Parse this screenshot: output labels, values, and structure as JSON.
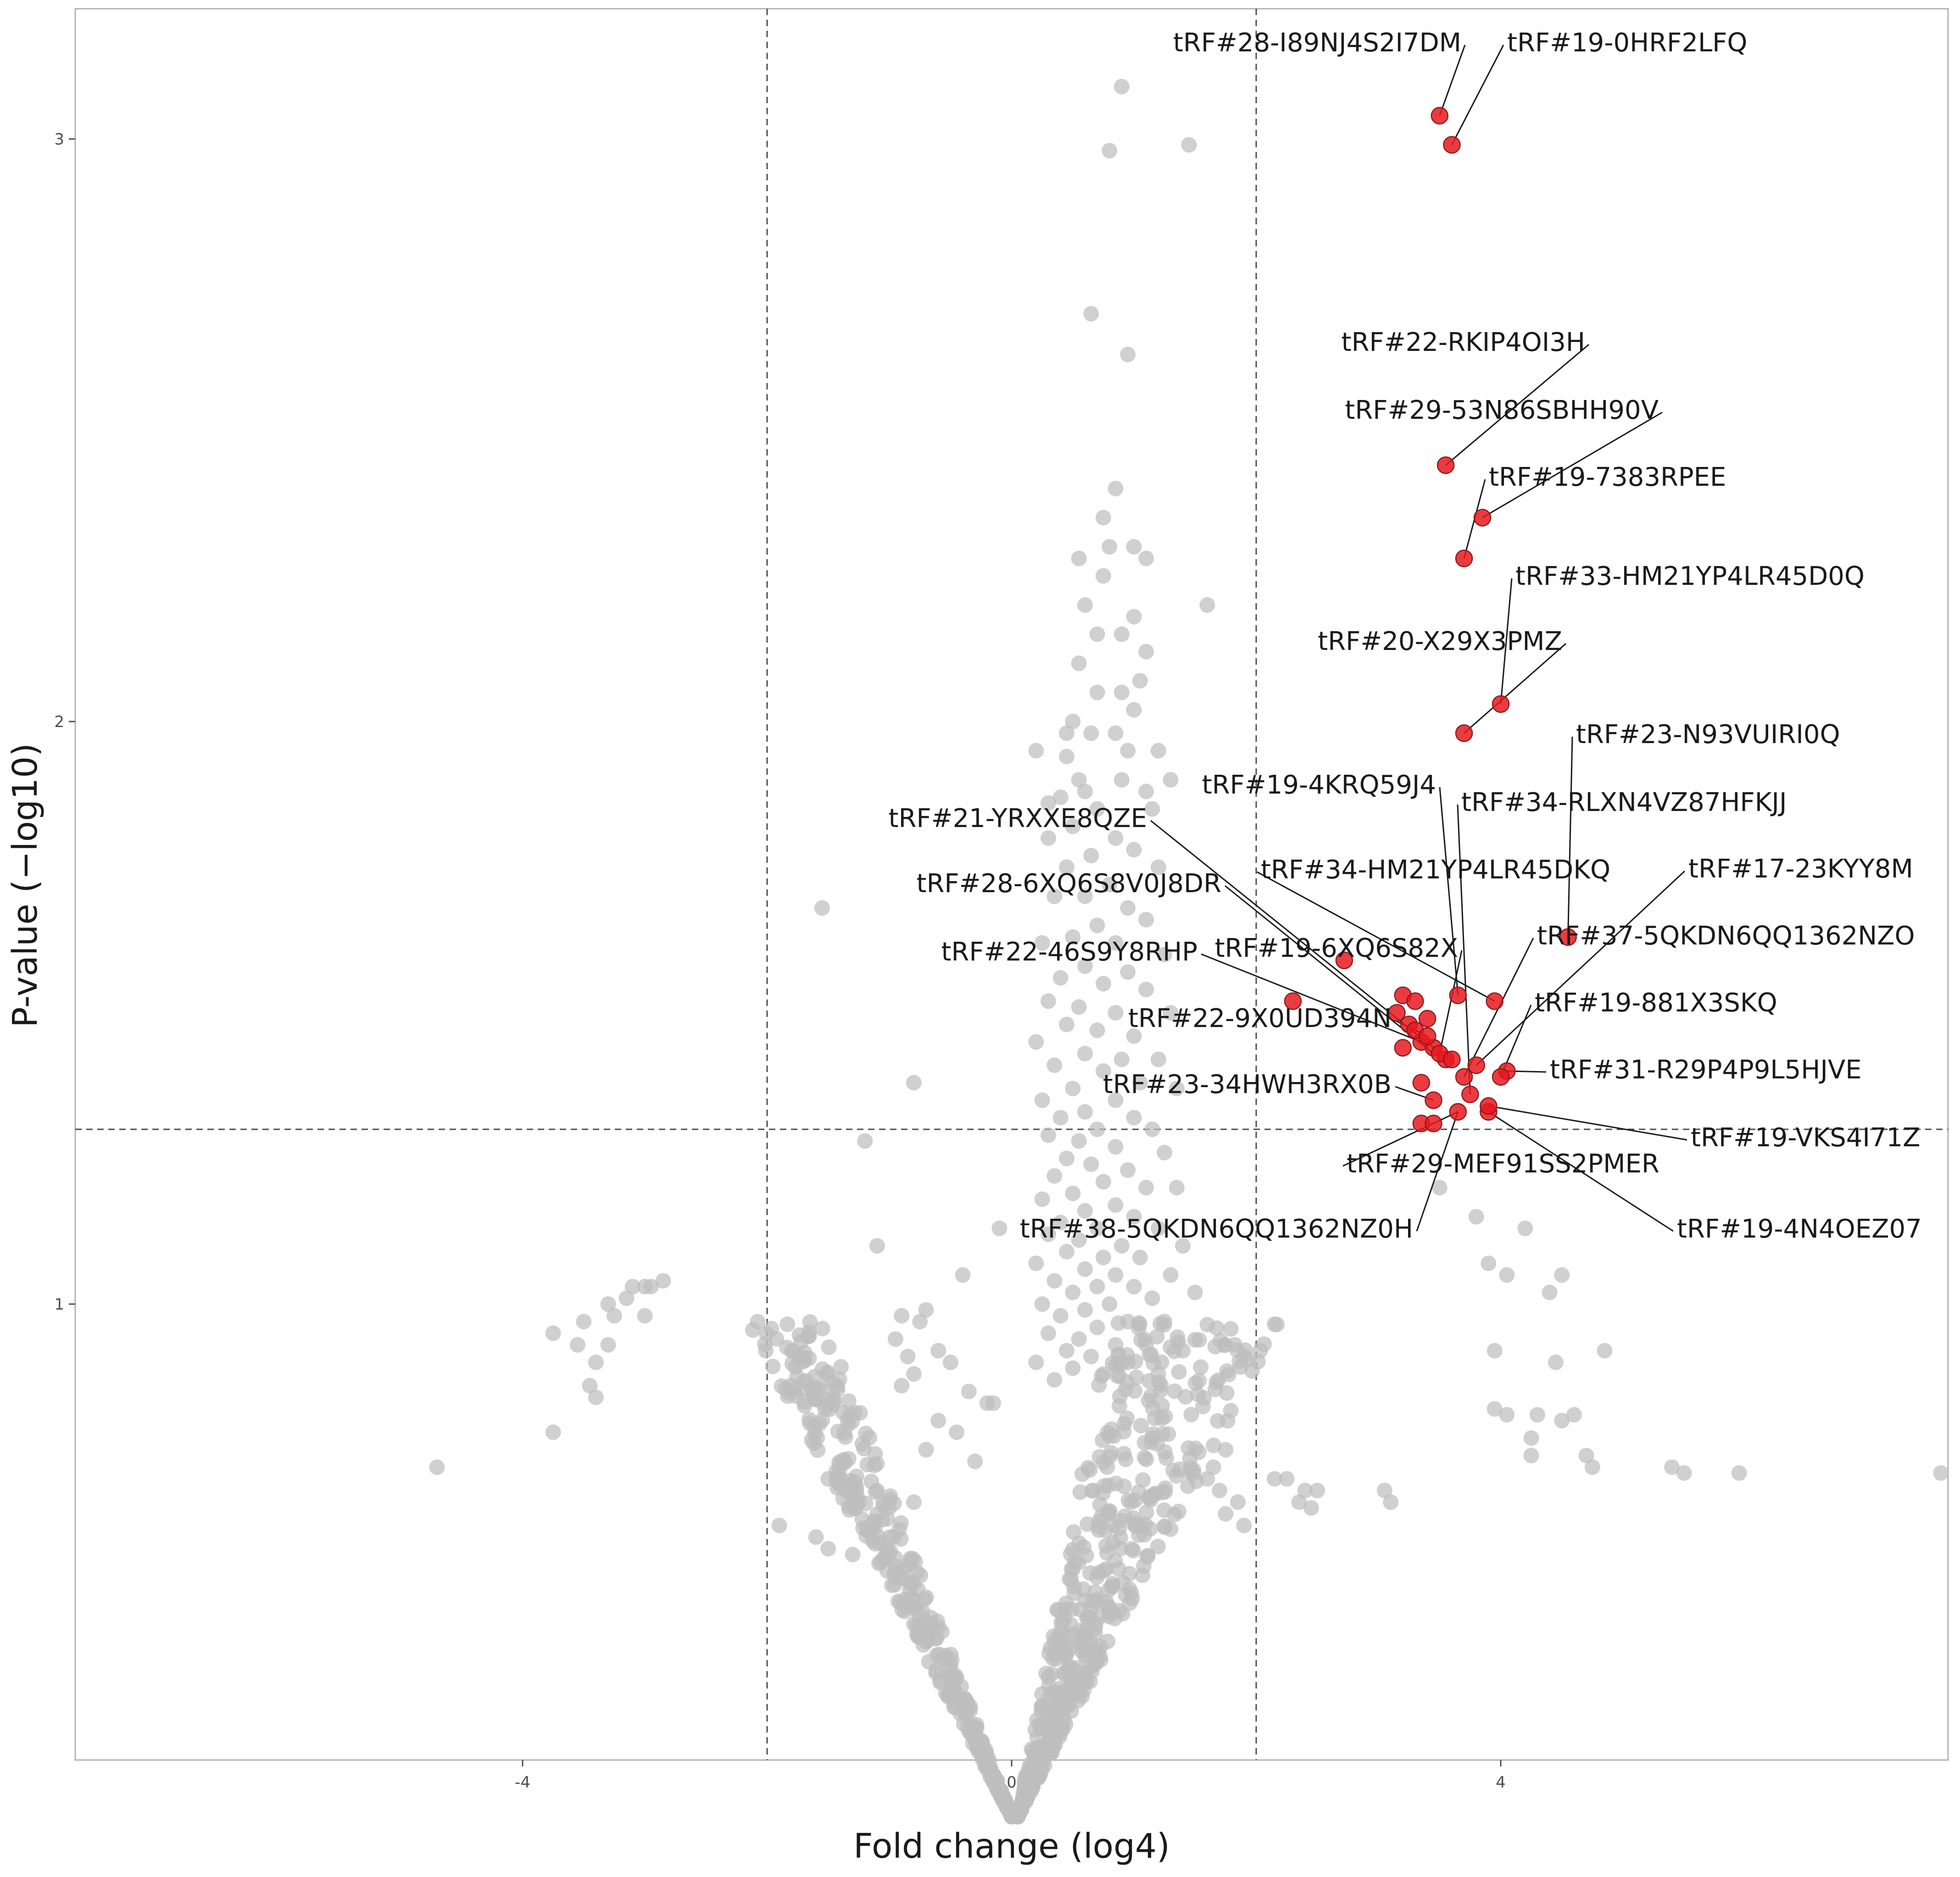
{
  "chart_data": {
    "type": "scatter",
    "title": "",
    "xlabel": "Fold change (log4)",
    "ylabel": "P-value (−log10)",
    "xlim": [
      -7.7,
      7.7
    ],
    "ylim": [
      0.1,
      3.2
    ],
    "xticks": [
      -4,
      0,
      4
    ],
    "xtick_labels": [
      "-4",
      "0",
      "4"
    ],
    "yticks": [
      1,
      2,
      3
    ],
    "ytick_labels": [
      "1",
      "2",
      "3"
    ],
    "grid": false,
    "legend": "none",
    "thresholds": {
      "fold_change": [
        -2,
        2
      ],
      "p_value": 1.3
    },
    "colors": {
      "background": "#ffffff",
      "panel_border": "#b3b3b3",
      "threshold_line": "#4d4d4d",
      "non_significant": "#bebebe",
      "significant": "#e8191f",
      "significant_outline": "#8b1a1a",
      "leader_line": "#1a1a1a"
    },
    "series": [
      {
        "name": "",
        "color": "#bebebe",
        "points": [
          [
            0.9,
            3.09
          ],
          [
            0.8,
            2.98
          ],
          [
            1.45,
            2.99
          ],
          [
            0.65,
            2.7
          ],
          [
            0.95,
            2.63
          ],
          [
            0.85,
            2.4
          ],
          [
            0.75,
            2.35
          ],
          [
            0.8,
            2.3
          ],
          [
            1.0,
            2.3
          ],
          [
            0.55,
            2.28
          ],
          [
            0.75,
            2.25
          ],
          [
            1.1,
            2.28
          ],
          [
            0.6,
            2.2
          ],
          [
            1.0,
            2.18
          ],
          [
            0.7,
            2.15
          ],
          [
            1.6,
            2.2
          ],
          [
            0.9,
            2.15
          ],
          [
            1.1,
            2.12
          ],
          [
            0.55,
            2.1
          ],
          [
            0.9,
            2.05
          ],
          [
            1.05,
            2.07
          ],
          [
            0.7,
            2.05
          ],
          [
            0.5,
            2.0
          ],
          [
            0.85,
            1.98
          ],
          [
            0.65,
            1.98
          ],
          [
            0.45,
            1.98
          ],
          [
            1.0,
            2.02
          ],
          [
            0.95,
            1.95
          ],
          [
            0.55,
            1.9
          ],
          [
            1.2,
            1.95
          ],
          [
            0.45,
            1.94
          ],
          [
            0.9,
            1.9
          ],
          [
            0.6,
            1.88
          ],
          [
            0.4,
            1.87
          ],
          [
            1.1,
            1.88
          ],
          [
            0.2,
            1.95
          ],
          [
            0.3,
            1.86
          ],
          [
            0.7,
            1.85
          ],
          [
            1.3,
            1.9
          ],
          [
            1.15,
            1.85
          ],
          [
            0.5,
            1.82
          ],
          [
            0.85,
            1.8
          ],
          [
            0.3,
            1.8
          ],
          [
            1.0,
            1.78
          ],
          [
            0.65,
            1.77
          ],
          [
            1.2,
            1.75
          ],
          [
            0.45,
            1.75
          ],
          [
            0.8,
            1.72
          ],
          [
            0.6,
            1.7
          ],
          [
            0.95,
            1.68
          ],
          [
            0.35,
            1.7
          ],
          [
            1.1,
            1.66
          ],
          [
            0.7,
            1.65
          ],
          [
            0.5,
            1.63
          ],
          [
            0.85,
            1.62
          ],
          [
            0.25,
            1.62
          ],
          [
            1.25,
            1.6
          ],
          [
            0.6,
            1.58
          ],
          [
            0.95,
            1.57
          ],
          [
            0.4,
            1.56
          ],
          [
            0.75,
            1.55
          ],
          [
            1.1,
            1.54
          ],
          [
            0.3,
            1.52
          ],
          [
            0.55,
            1.51
          ],
          [
            0.85,
            1.5
          ],
          [
            1.3,
            1.5
          ],
          [
            0.45,
            1.48
          ],
          [
            0.7,
            1.47
          ],
          [
            1.0,
            1.46
          ],
          [
            0.2,
            1.45
          ],
          [
            -1.55,
            1.68
          ],
          [
            0.6,
            1.43
          ],
          [
            0.9,
            1.42
          ],
          [
            1.2,
            1.42
          ],
          [
            0.35,
            1.41
          ],
          [
            0.75,
            1.4
          ],
          [
            1.05,
            1.38
          ],
          [
            0.5,
            1.37
          ],
          [
            0.25,
            1.35
          ],
          [
            0.85,
            1.35
          ],
          [
            1.35,
            1.37
          ],
          [
            0.6,
            1.33
          ],
          [
            0.4,
            1.32
          ],
          [
            1.0,
            1.32
          ],
          [
            0.7,
            1.3
          ],
          [
            1.15,
            1.3
          ],
          [
            0.3,
            1.29
          ],
          [
            0.55,
            1.28
          ],
          [
            0.85,
            1.27
          ],
          [
            -0.8,
            1.38
          ],
          [
            0.45,
            1.25
          ],
          [
            1.25,
            1.26
          ],
          [
            0.65,
            1.24
          ],
          [
            0.95,
            1.23
          ],
          [
            0.35,
            1.22
          ],
          [
            0.75,
            1.21
          ],
          [
            1.1,
            1.2
          ],
          [
            0.5,
            1.19
          ],
          [
            0.25,
            1.18
          ],
          [
            1.35,
            1.2
          ],
          [
            0.85,
            1.17
          ],
          [
            0.6,
            1.16
          ],
          [
            1.0,
            1.15
          ],
          [
            0.4,
            1.14
          ],
          [
            0.7,
            1.13
          ],
          [
            1.2,
            1.13
          ],
          [
            0.3,
            1.12
          ],
          [
            0.55,
            1.11
          ],
          [
            0.9,
            1.1
          ],
          [
            1.4,
            1.1
          ],
          [
            -1.2,
            1.28
          ],
          [
            -0.1,
            1.13
          ],
          [
            0.45,
            1.09
          ],
          [
            0.75,
            1.08
          ],
          [
            1.05,
            1.08
          ],
          [
            0.2,
            1.07
          ],
          [
            0.6,
            1.06
          ],
          [
            0.85,
            1.05
          ],
          [
            1.3,
            1.05
          ],
          [
            0.35,
            1.04
          ],
          [
            0.7,
            1.03
          ],
          [
            1.0,
            1.03
          ],
          [
            0.5,
            1.02
          ],
          [
            1.15,
            1.01
          ],
          [
            0.25,
            1.0
          ],
          [
            0.8,
            1.0
          ],
          [
            1.5,
            1.02
          ],
          [
            0.6,
            0.99
          ],
          [
            0.4,
            0.98
          ],
          [
            0.95,
            0.97
          ],
          [
            1.25,
            0.97
          ],
          [
            0.7,
            0.96
          ],
          [
            0.3,
            0.95
          ],
          [
            0.55,
            0.94
          ],
          [
            0.85,
            0.93
          ],
          [
            1.1,
            0.93
          ],
          [
            0.45,
            0.92
          ],
          [
            0.65,
            0.91
          ],
          [
            1.4,
            0.92
          ],
          [
            0.2,
            0.9
          ],
          [
            0.95,
            0.9
          ],
          [
            0.5,
            0.89
          ],
          [
            0.75,
            0.88
          ],
          [
            1.2,
            0.88
          ],
          [
            0.35,
            0.87
          ],
          [
            -1.1,
            1.1
          ],
          [
            -0.4,
            1.05
          ],
          [
            -0.9,
            0.98
          ],
          [
            -0.7,
            0.99
          ],
          [
            -0.75,
            0.97
          ],
          [
            -0.95,
            0.94
          ],
          [
            -0.6,
            0.92
          ],
          [
            -0.85,
            0.91
          ],
          [
            -0.5,
            0.9
          ],
          [
            -0.8,
            0.88
          ],
          [
            -0.9,
            0.86
          ],
          [
            -0.35,
            0.85
          ],
          [
            -0.15,
            0.83
          ],
          [
            -0.2,
            0.83
          ],
          [
            -0.6,
            0.8
          ],
          [
            -0.45,
            0.78
          ],
          [
            -0.7,
            0.75
          ],
          [
            -0.3,
            0.73
          ],
          [
            -1.5,
            0.7
          ],
          [
            -1.4,
            0.7
          ],
          [
            -1.1,
            0.68
          ],
          [
            -0.8,
            0.66
          ],
          [
            -1.9,
            0.62
          ],
          [
            -1.6,
            0.6
          ],
          [
            -1.5,
            0.58
          ],
          [
            -1.3,
            0.57
          ],
          [
            -1.0,
            0.6
          ],
          [
            -0.95,
            0.55
          ],
          [
            1.9,
            0.91
          ],
          [
            1.75,
            0.75
          ],
          [
            1.65,
            0.72
          ],
          [
            1.6,
            0.7
          ],
          [
            1.7,
            0.68
          ],
          [
            1.85,
            0.66
          ],
          [
            1.75,
            0.64
          ],
          [
            1.9,
            0.62
          ],
          [
            2.15,
            0.7
          ],
          [
            2.25,
            0.7
          ],
          [
            2.35,
            0.66
          ],
          [
            2.4,
            0.68
          ],
          [
            2.45,
            0.65
          ],
          [
            2.5,
            0.68
          ],
          [
            3.05,
            0.68
          ],
          [
            3.1,
            0.66
          ],
          [
            3.5,
            1.2
          ],
          [
            3.8,
            1.15
          ],
          [
            4.2,
            1.13
          ],
          [
            3.9,
            1.07
          ],
          [
            4.05,
            1.05
          ],
          [
            4.5,
            1.05
          ],
          [
            4.4,
            1.02
          ],
          [
            3.95,
            0.92
          ],
          [
            4.45,
            0.9
          ],
          [
            4.85,
            0.92
          ],
          [
            3.95,
            0.82
          ],
          [
            4.05,
            0.81
          ],
          [
            4.3,
            0.81
          ],
          [
            4.5,
            0.8
          ],
          [
            4.6,
            0.81
          ],
          [
            4.25,
            0.77
          ],
          [
            4.25,
            0.74
          ],
          [
            4.7,
            0.74
          ],
          [
            4.75,
            0.72
          ],
          [
            5.4,
            0.72
          ],
          [
            5.5,
            0.71
          ],
          [
            5.95,
            0.71
          ],
          [
            7.6,
            0.71
          ],
          [
            -2.85,
            1.04
          ],
          [
            -2.95,
            1.03
          ],
          [
            -3.1,
            1.03
          ],
          [
            -3.0,
            1.03
          ],
          [
            -3.15,
            1.01
          ],
          [
            -3.3,
            1.0
          ],
          [
            -3.0,
            0.98
          ],
          [
            -3.25,
            0.98
          ],
          [
            -3.5,
            0.97
          ],
          [
            -3.75,
            0.95
          ],
          [
            -3.55,
            0.93
          ],
          [
            -3.3,
            0.93
          ],
          [
            -3.4,
            0.9
          ],
          [
            -3.45,
            0.86
          ],
          [
            -3.4,
            0.84
          ],
          [
            -3.75,
            0.78
          ],
          [
            -4.7,
            0.72
          ]
        ]
      },
      {
        "name": "",
        "color": "#e8191f",
        "points": [
          [
            3.5,
            3.04
          ],
          [
            3.6,
            2.99
          ],
          [
            3.55,
            2.44
          ],
          [
            3.85,
            2.35
          ],
          [
            3.7,
            2.28
          ],
          [
            4.0,
            2.03
          ],
          [
            3.7,
            1.98
          ],
          [
            4.55,
            1.63
          ],
          [
            2.72,
            1.59
          ],
          [
            2.3,
            1.52
          ],
          [
            3.65,
            1.53
          ],
          [
            3.95,
            1.52
          ],
          [
            3.2,
            1.53
          ],
          [
            3.3,
            1.52
          ],
          [
            3.15,
            1.5
          ],
          [
            3.4,
            1.49
          ],
          [
            3.25,
            1.48
          ],
          [
            3.35,
            1.45
          ],
          [
            3.3,
            1.47
          ],
          [
            3.45,
            1.44
          ],
          [
            3.55,
            1.42
          ],
          [
            3.5,
            1.43
          ],
          [
            3.4,
            1.46
          ],
          [
            3.2,
            1.44
          ],
          [
            3.8,
            1.41
          ],
          [
            3.6,
            1.42
          ],
          [
            4.05,
            1.4
          ],
          [
            4.0,
            1.39
          ],
          [
            3.7,
            1.39
          ],
          [
            3.35,
            1.38
          ],
          [
            3.75,
            1.36
          ],
          [
            3.45,
            1.35
          ],
          [
            3.9,
            1.33
          ],
          [
            3.9,
            1.34
          ],
          [
            3.65,
            1.33
          ],
          [
            3.35,
            1.31
          ],
          [
            3.45,
            1.31
          ]
        ]
      }
    ],
    "labels": [
      {
        "text": "tRF#28-I89NJ4S2I7DM",
        "point": [
          3.5,
          3.04
        ]
      },
      {
        "text": "tRF#19-0HRF2LFQ",
        "point": [
          3.6,
          2.99
        ]
      },
      {
        "text": "tRF#22-RKIP4OI3H",
        "point": [
          3.55,
          2.44
        ]
      },
      {
        "text": "tRF#29-53N86SBHH90V",
        "point": [
          3.85,
          2.35
        ]
      },
      {
        "text": "tRF#19-7383RPEE",
        "point": [
          3.7,
          2.28
        ]
      },
      {
        "text": "tRF#33-HM21YP4LR45D0Q",
        "point": [
          4.0,
          2.03
        ]
      },
      {
        "text": "tRF#20-X29X3PMZ",
        "point": [
          3.7,
          1.98
        ]
      },
      {
        "text": "tRF#23-N93VUIRI0Q",
        "point": [
          4.55,
          1.63
        ]
      },
      {
        "text": "tRF#19-4KRQ59J4",
        "point": [
          3.65,
          1.53
        ]
      },
      {
        "text": "tRF#34-RLXN4VZ87HFKJJ",
        "point": [
          3.75,
          1.36
        ]
      },
      {
        "text": "tRF#21-YRXXE8QZE",
        "point": [
          3.45,
          1.44
        ]
      },
      {
        "text": "tRF#34-HM21YP4LR45DKQ",
        "point": [
          3.95,
          1.52
        ]
      },
      {
        "text": "tRF#17-23KYY8M",
        "point": [
          3.8,
          1.41
        ]
      },
      {
        "text": "tRF#28-6XQ6S8V0J8DR",
        "point": [
          3.45,
          1.43
        ]
      },
      {
        "text": "tRF#37-5QKDN6QQ1362NZO",
        "point": [
          3.7,
          1.39
        ]
      },
      {
        "text": "tRF#22-46S9Y8RHP",
        "point": [
          3.35,
          1.45
        ]
      },
      {
        "text": "tRF#19-6XQ6S82X",
        "point": [
          3.5,
          1.43
        ]
      },
      {
        "text": "tRF#19-881X3SKQ",
        "point": [
          4.0,
          1.39
        ]
      },
      {
        "text": "tRF#22-9X0UD394N",
        "point": [
          3.4,
          1.46
        ]
      },
      {
        "text": "tRF#31-R29P4P9L5HJVE",
        "point": [
          4.05,
          1.4
        ]
      },
      {
        "text": "tRF#23-34HWH3RX0B",
        "point": [
          3.45,
          1.35
        ]
      },
      {
        "text": "tRF#19-VKS4I71Z",
        "point": [
          3.9,
          1.34
        ]
      },
      {
        "text": "tRF#29-MEF91SS2PMER",
        "point": [
          3.65,
          1.33
        ]
      },
      {
        "text": "tRF#19-4N4OEZ07",
        "point": [
          3.9,
          1.33
        ]
      },
      {
        "text": "tRF#38-5QKDN6QQ1362NZ0H",
        "point": [
          3.65,
          1.33
        ]
      }
    ]
  }
}
